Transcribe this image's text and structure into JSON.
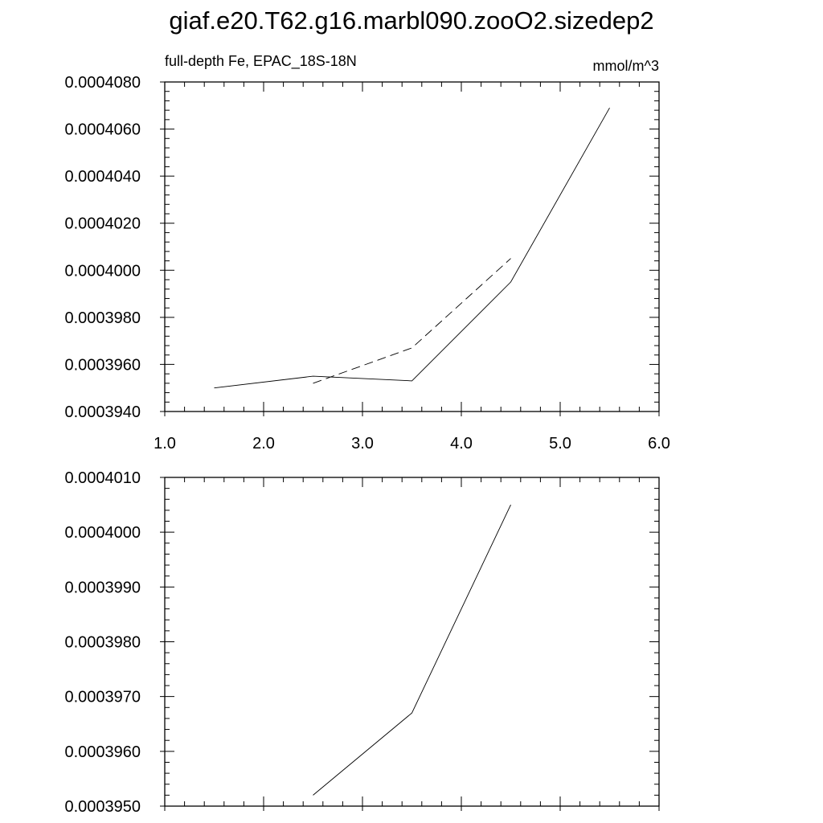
{
  "title": "giaf.e20.T62.g16.marbl090.zooO2.sizedep2",
  "chart_data": [
    {
      "type": "line",
      "subtitle_left": "full-depth Fe, EPAC_18S-18N",
      "subtitle_right": "mmol/m^3",
      "xlim": [
        1.0,
        6.0
      ],
      "x_ticks": [
        1.0,
        2.0,
        3.0,
        4.0,
        5.0,
        6.0
      ],
      "x_tick_labels": [
        "1.0",
        "2.0",
        "3.0",
        "4.0",
        "5.0",
        "6.0"
      ],
      "ylim": [
        0.000394,
        0.000408
      ],
      "y_ticks": [
        0.000394,
        0.000396,
        0.000398,
        0.0004,
        0.000402,
        0.000404,
        0.000406,
        0.000408
      ],
      "y_tick_labels": [
        "0.0003940",
        "0.0003960",
        "0.0003980",
        "0.0004000",
        "0.0004020",
        "0.0004040",
        "0.0004060",
        "0.0004080"
      ],
      "grid": false,
      "series": [
        {
          "style": "solid",
          "x": [
            1.5,
            2.5,
            3.5,
            4.5,
            5.5
          ],
          "y": [
            0.000395,
            0.0003955,
            0.0003953,
            0.0003995,
            0.0004069
          ]
        },
        {
          "style": "dashed",
          "x": [
            2.5,
            3.5,
            4.5
          ],
          "y": [
            0.0003952,
            0.0003967,
            0.0004005
          ]
        }
      ]
    },
    {
      "type": "line",
      "xlim": [
        1.0,
        6.0
      ],
      "x_ticks": [
        1.0,
        2.0,
        3.0,
        4.0,
        5.0,
        6.0
      ],
      "ylim": [
        0.000395,
        0.000401
      ],
      "y_ticks": [
        0.000395,
        0.000396,
        0.000397,
        0.000398,
        0.000399,
        0.0004,
        0.000401
      ],
      "y_tick_labels": [
        "0.0003950",
        "0.0003960",
        "0.0003970",
        "0.0003980",
        "0.0003990",
        "0.0004000",
        "0.0004010"
      ],
      "grid": false,
      "series": [
        {
          "style": "solid",
          "x": [
            2.5,
            3.5,
            4.5
          ],
          "y": [
            0.0003952,
            0.0003967,
            0.0004005
          ]
        }
      ]
    }
  ]
}
